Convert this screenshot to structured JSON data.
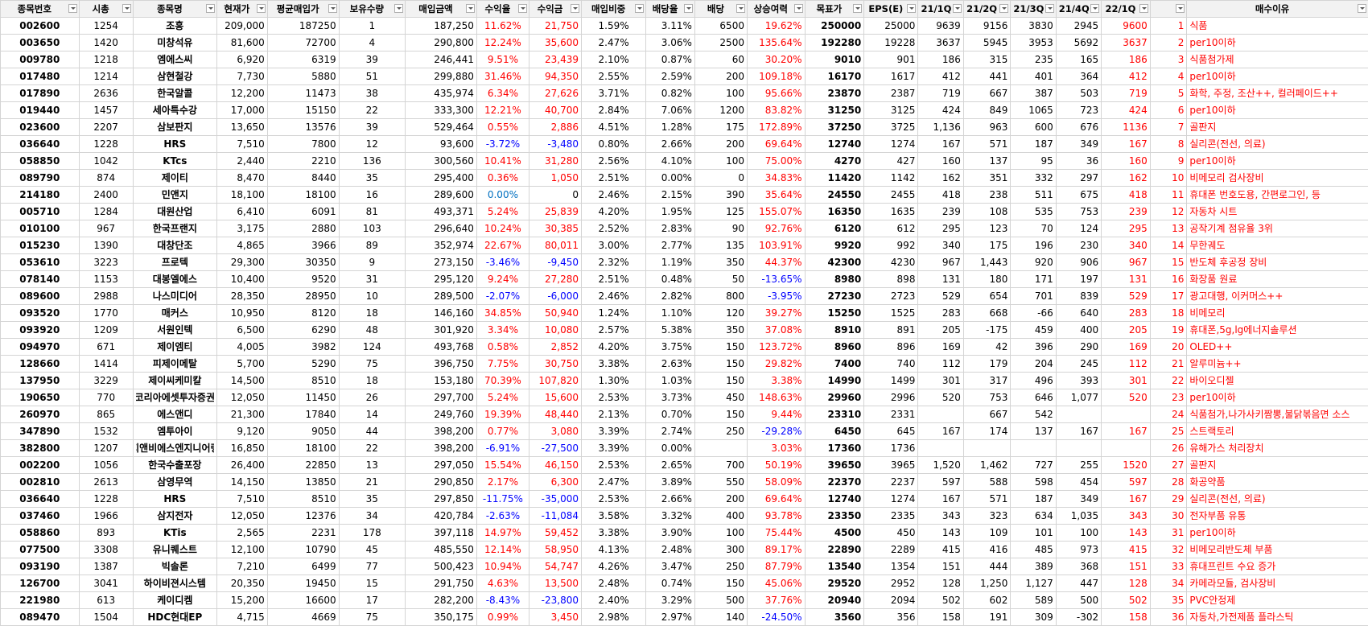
{
  "table": {
    "headers": [
      "종목번호",
      "시총",
      "종목명",
      "현재가",
      "평균매입가",
      "보유수량",
      "매입금액",
      "수익율",
      "수익금",
      "매입비중",
      "배당율",
      "배당",
      "상승여력",
      "목표가",
      "EPS(E)",
      "21/1Q",
      "21/2Q",
      "21/3Q",
      "21/4Q",
      "22/1Q",
      null,
      "매수이유"
    ],
    "rows": [
      [
        "002600",
        "1254",
        "조흥",
        "209,000",
        "187250",
        "1",
        "187,250",
        "11.62%",
        "21,750",
        "1.59%",
        "3.11%",
        "6500",
        "19.62%",
        "250000",
        "25000",
        "9639",
        "9156",
        "3830",
        "2945",
        "9600",
        "1",
        "식품"
      ],
      [
        "003650",
        "1420",
        "미창석유",
        "81,600",
        "72700",
        "4",
        "290,800",
        "12.24%",
        "35,600",
        "2.47%",
        "3.06%",
        "2500",
        "135.64%",
        "192280",
        "19228",
        "3637",
        "5945",
        "3953",
        "5692",
        "3637",
        "2",
        "per10이하"
      ],
      [
        "009780",
        "1218",
        "엠에스씨",
        "6,920",
        "6319",
        "39",
        "246,441",
        "9.51%",
        "23,439",
        "2.10%",
        "0.87%",
        "60",
        "30.20%",
        "9010",
        "901",
        "186",
        "315",
        "235",
        "165",
        "186",
        "3",
        "식품첨가제"
      ],
      [
        "017480",
        "1214",
        "삼현철강",
        "7,730",
        "5880",
        "51",
        "299,880",
        "31.46%",
        "94,350",
        "2.55%",
        "2.59%",
        "200",
        "109.18%",
        "16170",
        "1617",
        "412",
        "441",
        "401",
        "364",
        "412",
        "4",
        "per10이하"
      ],
      [
        "017890",
        "2636",
        "한국알콜",
        "12,200",
        "11473",
        "38",
        "435,974",
        "6.34%",
        "27,626",
        "3.71%",
        "0.82%",
        "100",
        "95.66%",
        "23870",
        "2387",
        "719",
        "667",
        "387",
        "503",
        "719",
        "5",
        "화학, 주정, 조산++, 컬러페이드++"
      ],
      [
        "019440",
        "1457",
        "세아특수강",
        "17,000",
        "15150",
        "22",
        "333,300",
        "12.21%",
        "40,700",
        "2.84%",
        "7.06%",
        "1200",
        "83.82%",
        "31250",
        "3125",
        "424",
        "849",
        "1065",
        "723",
        "424",
        "6",
        "per10이하"
      ],
      [
        "023600",
        "2207",
        "삼보판지",
        "13,650",
        "13576",
        "39",
        "529,464",
        "0.55%",
        "2,886",
        "4.51%",
        "1.28%",
        "175",
        "172.89%",
        "37250",
        "3725",
        "1,136",
        "963",
        "600",
        "676",
        "1136",
        "7",
        "골판지"
      ],
      [
        "036640",
        "1228",
        "HRS",
        "7,510",
        "7800",
        "12",
        "93,600",
        "-3.72%",
        "-3,480",
        "0.80%",
        "2.66%",
        "200",
        "69.64%",
        "12740",
        "1274",
        "167",
        "571",
        "187",
        "349",
        "167",
        "8",
        "실리콘(전선, 의료)"
      ],
      [
        "058850",
        "1042",
        "KTcs",
        "2,440",
        "2210",
        "136",
        "300,560",
        "10.41%",
        "31,280",
        "2.56%",
        "4.10%",
        "100",
        "75.00%",
        "4270",
        "427",
        "160",
        "137",
        "95",
        "36",
        "160",
        "9",
        "per10이하"
      ],
      [
        "089790",
        "874",
        "제이티",
        "8,470",
        "8440",
        "35",
        "295,400",
        "0.36%",
        "1,050",
        "2.51%",
        "0.00%",
        "0",
        "34.83%",
        "11420",
        "1142",
        "162",
        "351",
        "332",
        "297",
        "162",
        "10",
        "비메모리 검사장비"
      ],
      [
        "214180",
        "2400",
        "민앤지",
        "18,100",
        "18100",
        "16",
        "289,600",
        "0.00%",
        "0",
        "2.46%",
        "2.15%",
        "390",
        "35.64%",
        "24550",
        "2455",
        "418",
        "238",
        "511",
        "675",
        "418",
        "11",
        "휴대폰 번호도용, 간편로그인, 등"
      ],
      [
        "005710",
        "1284",
        "대원산업",
        "6,410",
        "6091",
        "81",
        "493,371",
        "5.24%",
        "25,839",
        "4.20%",
        "1.95%",
        "125",
        "155.07%",
        "16350",
        "1635",
        "239",
        "108",
        "535",
        "753",
        "239",
        "12",
        "자동차 시트"
      ],
      [
        "010100",
        "967",
        "한국프랜지",
        "3,175",
        "2880",
        "103",
        "296,640",
        "10.24%",
        "30,385",
        "2.52%",
        "2.83%",
        "90",
        "92.76%",
        "6120",
        "612",
        "295",
        "123",
        "70",
        "124",
        "295",
        "13",
        "공작기계 점유율 3위"
      ],
      [
        "015230",
        "1390",
        "대창단조",
        "4,865",
        "3966",
        "89",
        "352,974",
        "22.67%",
        "80,011",
        "3.00%",
        "2.77%",
        "135",
        "103.91%",
        "9920",
        "992",
        "340",
        "175",
        "196",
        "230",
        "340",
        "14",
        "무한궤도"
      ],
      [
        "053610",
        "3223",
        "프로텍",
        "29,300",
        "30350",
        "9",
        "273,150",
        "-3.46%",
        "-9,450",
        "2.32%",
        "1.19%",
        "350",
        "44.37%",
        "42300",
        "4230",
        "967",
        "1,443",
        "920",
        "906",
        "967",
        "15",
        "반도체 후공정 장비"
      ],
      [
        "078140",
        "1153",
        "대봉엘에스",
        "10,400",
        "9520",
        "31",
        "295,120",
        "9.24%",
        "27,280",
        "2.51%",
        "0.48%",
        "50",
        "-13.65%",
        "8980",
        "898",
        "131",
        "180",
        "171",
        "197",
        "131",
        "16",
        "화장품 원료"
      ],
      [
        "089600",
        "2988",
        "나스미디어",
        "28,350",
        "28950",
        "10",
        "289,500",
        "-2.07%",
        "-6,000",
        "2.46%",
        "2.82%",
        "800",
        "-3.95%",
        "27230",
        "2723",
        "529",
        "654",
        "701",
        "839",
        "529",
        "17",
        "광고대행, 이커머스++"
      ],
      [
        "093520",
        "1770",
        "매커스",
        "10,950",
        "8120",
        "18",
        "146,160",
        "34.85%",
        "50,940",
        "1.24%",
        "1.10%",
        "120",
        "39.27%",
        "15250",
        "1525",
        "283",
        "668",
        "-66",
        "640",
        "283",
        "18",
        "비메모리"
      ],
      [
        "093920",
        "1209",
        "서원인텍",
        "6,500",
        "6290",
        "48",
        "301,920",
        "3.34%",
        "10,080",
        "2.57%",
        "5.38%",
        "350",
        "37.08%",
        "8910",
        "891",
        "205",
        "-175",
        "459",
        "400",
        "205",
        "19",
        "휴대폰,5g,lg에너지솔루션"
      ],
      [
        "094970",
        "671",
        "제이엠티",
        "4,005",
        "3982",
        "124",
        "493,768",
        "0.58%",
        "2,852",
        "4.20%",
        "3.75%",
        "150",
        "123.72%",
        "8960",
        "896",
        "169",
        "42",
        "396",
        "290",
        "169",
        "20",
        "OLED++"
      ],
      [
        "128660",
        "1414",
        "피제이메탈",
        "5,700",
        "5290",
        "75",
        "396,750",
        "7.75%",
        "30,750",
        "3.38%",
        "2.63%",
        "150",
        "29.82%",
        "7400",
        "740",
        "112",
        "179",
        "204",
        "245",
        "112",
        "21",
        "알루미늄++"
      ],
      [
        "137950",
        "3229",
        "제이씨케미칼",
        "14,500",
        "8510",
        "18",
        "153,180",
        "70.39%",
        "107,820",
        "1.30%",
        "1.03%",
        "150",
        "3.38%",
        "14990",
        "1499",
        "301",
        "317",
        "496",
        "393",
        "301",
        "22",
        "바이오디젤"
      ],
      [
        "190650",
        "770",
        "코리아에셋투자증권",
        "12,050",
        "11450",
        "26",
        "297,700",
        "5.24%",
        "15,600",
        "2.53%",
        "3.73%",
        "450",
        "148.63%",
        "29960",
        "2996",
        "520",
        "753",
        "646",
        "1,077",
        "520",
        "23",
        "per10이하"
      ],
      [
        "260970",
        "865",
        "에스앤디",
        "21,300",
        "17840",
        "14",
        "249,760",
        "19.39%",
        "48,440",
        "2.13%",
        "0.70%",
        "150",
        "9.44%",
        "23310",
        "2331",
        null,
        "667",
        "542",
        null,
        null,
        "24",
        "식품첨가,나가사키짬뽕,불닭볶음면 소스"
      ],
      [
        "347890",
        "1532",
        "엠투아이",
        "9,120",
        "9050",
        "44",
        "398,200",
        "0.77%",
        "3,080",
        "3.39%",
        "2.74%",
        "250",
        "-29.28%",
        "6450",
        "645",
        "167",
        "174",
        "137",
        "167",
        "167",
        "25",
        "스트랙토리"
      ],
      [
        "382800",
        "1207",
        "지앤비에스엔지니어링",
        "16,850",
        "18100",
        "22",
        "398,200",
        "-6.91%",
        "-27,500",
        "3.39%",
        "0.00%",
        null,
        "3.03%",
        "17360",
        "1736",
        null,
        null,
        null,
        null,
        null,
        "26",
        "유해가스 처리장치"
      ],
      [
        "002200",
        "1056",
        "한국수출포장",
        "26,400",
        "22850",
        "13",
        "297,050",
        "15.54%",
        "46,150",
        "2.53%",
        "2.65%",
        "700",
        "50.19%",
        "39650",
        "3965",
        "1,520",
        "1,462",
        "727",
        "255",
        "1520",
        "27",
        "골판지"
      ],
      [
        "002810",
        "2613",
        "삼영무역",
        "14,150",
        "13850",
        "21",
        "290,850",
        "2.17%",
        "6,300",
        "2.47%",
        "3.89%",
        "550",
        "58.09%",
        "22370",
        "2237",
        "597",
        "588",
        "598",
        "454",
        "597",
        "28",
        "화공약품"
      ],
      [
        "036640",
        "1228",
        "HRS",
        "7,510",
        "8510",
        "35",
        "297,850",
        "-11.75%",
        "-35,000",
        "2.53%",
        "2.66%",
        "200",
        "69.64%",
        "12740",
        "1274",
        "167",
        "571",
        "187",
        "349",
        "167",
        "29",
        "실리콘(전선, 의료)"
      ],
      [
        "037460",
        "1966",
        "삼지전자",
        "12,050",
        "12376",
        "34",
        "420,784",
        "-2.63%",
        "-11,084",
        "3.58%",
        "3.32%",
        "400",
        "93.78%",
        "23350",
        "2335",
        "343",
        "323",
        "634",
        "1,035",
        "343",
        "30",
        "전자부품 유통"
      ],
      [
        "058860",
        "893",
        "KTis",
        "2,565",
        "2231",
        "178",
        "397,118",
        "14.97%",
        "59,452",
        "3.38%",
        "3.90%",
        "100",
        "75.44%",
        "4500",
        "450",
        "143",
        "109",
        "101",
        "100",
        "143",
        "31",
        "per10이하"
      ],
      [
        "077500",
        "3308",
        "유니퀘스트",
        "12,100",
        "10790",
        "45",
        "485,550",
        "12.14%",
        "58,950",
        "4.13%",
        "2.48%",
        "300",
        "89.17%",
        "22890",
        "2289",
        "415",
        "416",
        "485",
        "973",
        "415",
        "32",
        "비메모리반도체 부품"
      ],
      [
        "093190",
        "1387",
        "빅솔론",
        "7,210",
        "6499",
        "77",
        "500,423",
        "10.94%",
        "54,747",
        "4.26%",
        "3.47%",
        "250",
        "87.79%",
        "13540",
        "1354",
        "151",
        "444",
        "389",
        "368",
        "151",
        "33",
        "휴대프린트 수요 증가"
      ],
      [
        "126700",
        "3041",
        "하이비젼시스템",
        "20,350",
        "19450",
        "15",
        "291,750",
        "4.63%",
        "13,500",
        "2.48%",
        "0.74%",
        "150",
        "45.06%",
        "29520",
        "2952",
        "128",
        "1,250",
        "1,127",
        "447",
        "128",
        "34",
        "카메라모듈, 검사장비"
      ],
      [
        "221980",
        "613",
        "케이디켐",
        "15,200",
        "16600",
        "17",
        "282,200",
        "-8.43%",
        "-23,800",
        "2.40%",
        "3.29%",
        "500",
        "37.76%",
        "20940",
        "2094",
        "502",
        "602",
        "589",
        "500",
        "502",
        "35",
        "PVC안정제"
      ],
      [
        "089470",
        "1504",
        "HDC현대EP",
        "4,715",
        "4669",
        "75",
        "350,175",
        "0.99%",
        "3,450",
        "2.98%",
        "2.97%",
        "140",
        "-24.50%",
        "3560",
        "356",
        "158",
        "191",
        "309",
        "-302",
        "158",
        "36",
        "자동차,가전제품 플라스틱"
      ]
    ]
  }
}
